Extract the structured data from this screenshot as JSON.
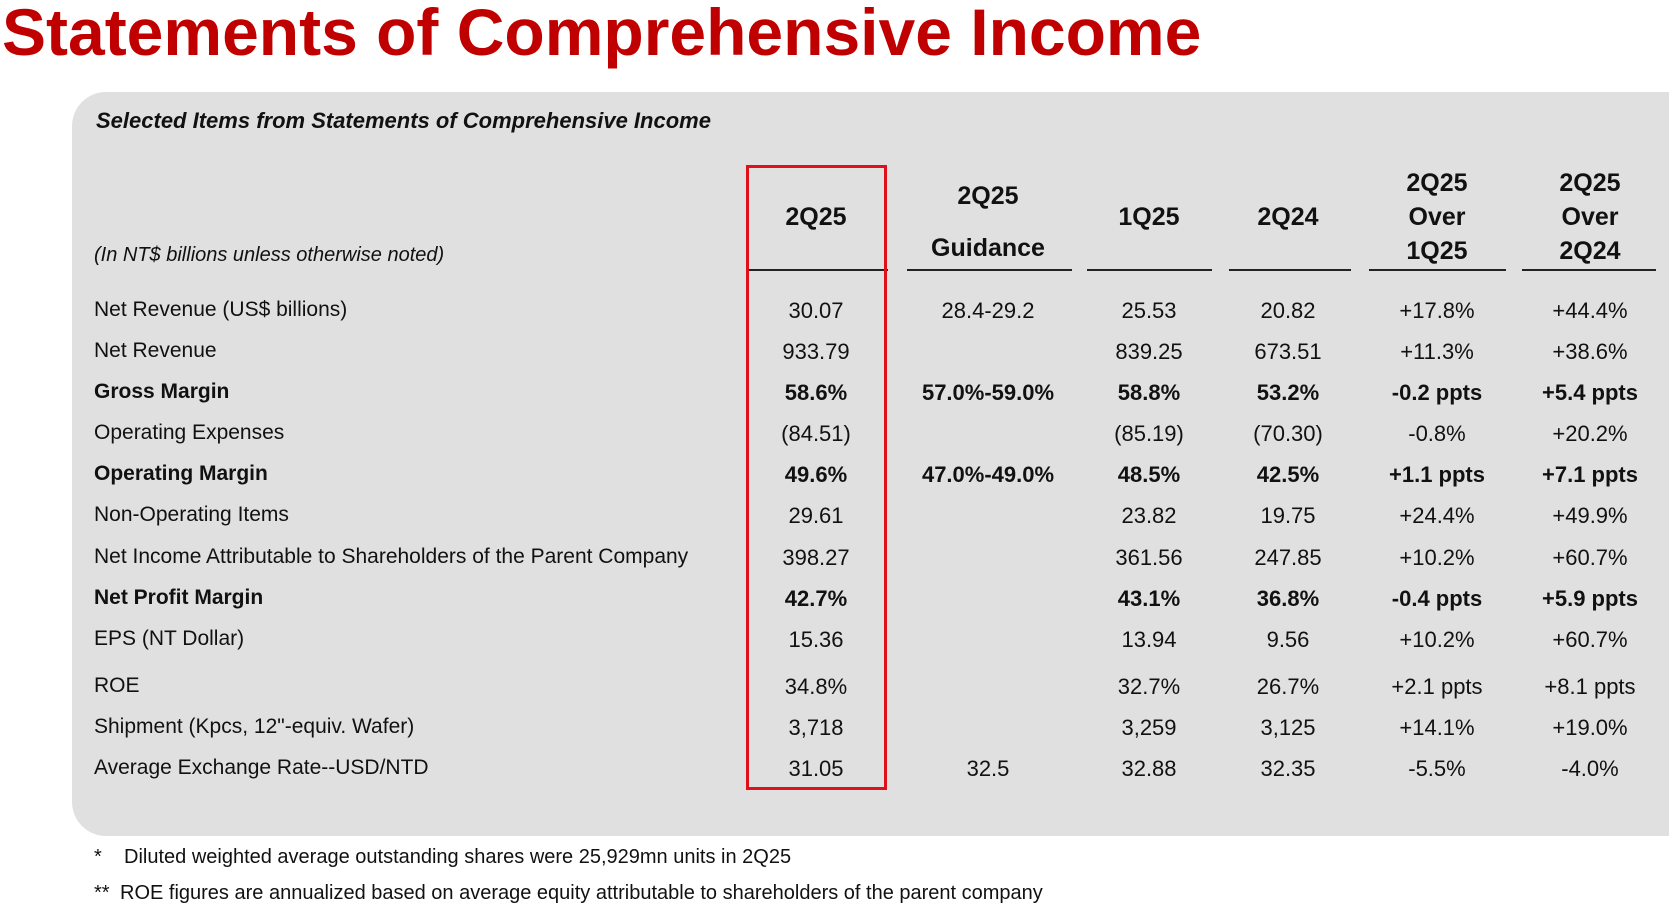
{
  "page": {
    "title": "Statements of Comprehensive Income",
    "subtitle": "Selected Items from Statements of Comprehensive Income",
    "unit_note": "(In NT$ billions unless otherwise noted)"
  },
  "columns": [
    {
      "lines": [
        "2Q25"
      ]
    },
    {
      "lines": [
        "2Q25",
        "Guidance"
      ]
    },
    {
      "lines": [
        "1Q25"
      ]
    },
    {
      "lines": [
        "2Q24"
      ]
    },
    {
      "lines": [
        "2Q25",
        "Over",
        "1Q25"
      ]
    },
    {
      "lines": [
        "2Q25",
        "Over",
        "2Q24"
      ]
    }
  ],
  "rows": [
    {
      "label": "Net Revenue (US$ billions)",
      "bold": false,
      "cells": [
        "30.07",
        "28.4-29.2",
        "25.53",
        "20.82",
        "+17.8%",
        "+44.4%"
      ]
    },
    {
      "label": "Net Revenue",
      "bold": false,
      "cells": [
        "933.79",
        "",
        "839.25",
        "673.51",
        "+11.3%",
        "+38.6%"
      ]
    },
    {
      "label": "Gross Margin",
      "bold": true,
      "cells": [
        "58.6%",
        "57.0%-59.0%",
        "58.8%",
        "53.2%",
        "-0.2 ppts",
        "+5.4 ppts"
      ]
    },
    {
      "label": "Operating Expenses",
      "bold": false,
      "cells": [
        "(84.51)",
        "",
        "(85.19)",
        "(70.30)",
        "-0.8%",
        "+20.2%"
      ]
    },
    {
      "label": "Operating Margin",
      "bold": true,
      "cells": [
        "49.6%",
        "47.0%-49.0%",
        "48.5%",
        "42.5%",
        "+1.1 ppts",
        "+7.1 ppts"
      ]
    },
    {
      "label": "Non-Operating Items",
      "bold": false,
      "cells": [
        "29.61",
        "",
        "23.82",
        "19.75",
        "+24.4%",
        "+49.9%"
      ]
    },
    {
      "label": "Net Income Attributable to Shareholders of the Parent Company",
      "bold": false,
      "cells": [
        "398.27",
        "",
        "361.56",
        "247.85",
        "+10.2%",
        "+60.7%"
      ]
    },
    {
      "label": "Net Profit Margin",
      "bold": true,
      "cells": [
        "42.7%",
        "",
        "43.1%",
        "36.8%",
        "-0.4 ppts",
        "+5.9 ppts"
      ]
    },
    {
      "label": "EPS (NT Dollar)",
      "bold": false,
      "cells": [
        "15.36",
        "",
        "13.94",
        "9.56",
        "+10.2%",
        "+60.7%"
      ]
    },
    {
      "label": "ROE",
      "bold": false,
      "cells": [
        "34.8%",
        "",
        "32.7%",
        "26.7%",
        "+2.1 ppts",
        "+8.1 ppts"
      ]
    },
    {
      "label": "Shipment (Kpcs, 12\"-equiv. Wafer)",
      "bold": false,
      "cells": [
        "3,718",
        "",
        "3,259",
        "3,125",
        "+14.1%",
        "+19.0%"
      ]
    },
    {
      "label": "Average Exchange Rate--USD/NTD",
      "bold": false,
      "cells": [
        "31.05",
        "32.5",
        "32.88",
        "32.35",
        "-5.5%",
        "-4.0%"
      ]
    }
  ],
  "footnotes": [
    {
      "mark": "*",
      "text": "Diluted weighted average outstanding shares were 25,929mn units in 2Q25"
    },
    {
      "mark": "**",
      "text": "ROE figures are annualized based on average equity attributable to shareholders of the parent company"
    }
  ],
  "colors": {
    "title": "#c00000",
    "panel": "#e0e0e0",
    "highlight": "#e0101a"
  }
}
